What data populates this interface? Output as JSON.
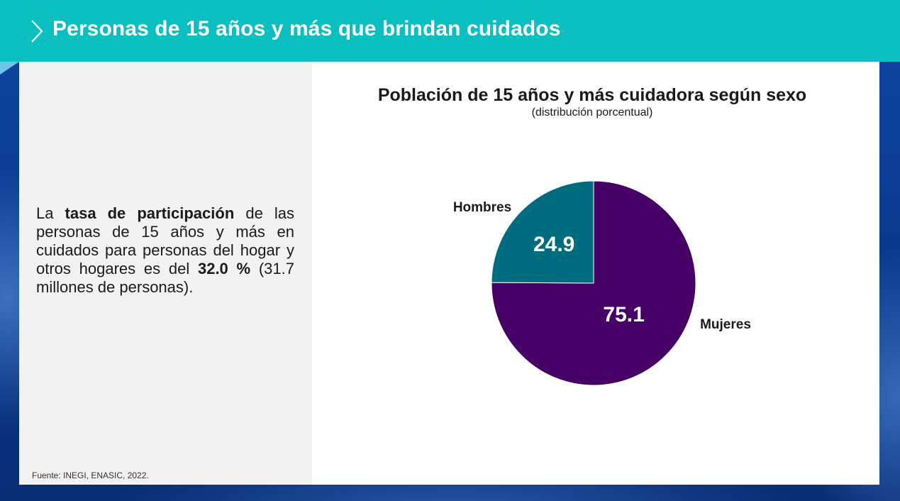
{
  "header": {
    "title": "Personas de 15 años y más que brindan cuidados"
  },
  "left_panel": {
    "text_parts": [
      {
        "text": "La ",
        "bold": false
      },
      {
        "text": "tasa de participación",
        "bold": true
      },
      {
        "text": " de las personas de 15 años y más en cuidados para personas del hogar y otros hogares es del ",
        "bold": false
      },
      {
        "text": "32.0 %",
        "bold": true
      },
      {
        "text": " (31.7 millones de personas).",
        "bold": false
      }
    ],
    "source": "Fuente: INEGI, ENASIC, 2022."
  },
  "colors": {
    "header": "#0abfbf",
    "hombres": "#006c80",
    "mujeres": "#470066"
  },
  "chart_data": {
    "type": "pie",
    "title": "Población de 15 años y más cuidadora según sexo",
    "subtitle": "(distribución porcentual)",
    "slices": [
      {
        "label": "Hombres",
        "value": 24.9,
        "value_label": "24.9",
        "color": "#006c80"
      },
      {
        "label": "Mujeres",
        "value": 75.1,
        "value_label": "75.1",
        "color": "#470066"
      }
    ]
  }
}
